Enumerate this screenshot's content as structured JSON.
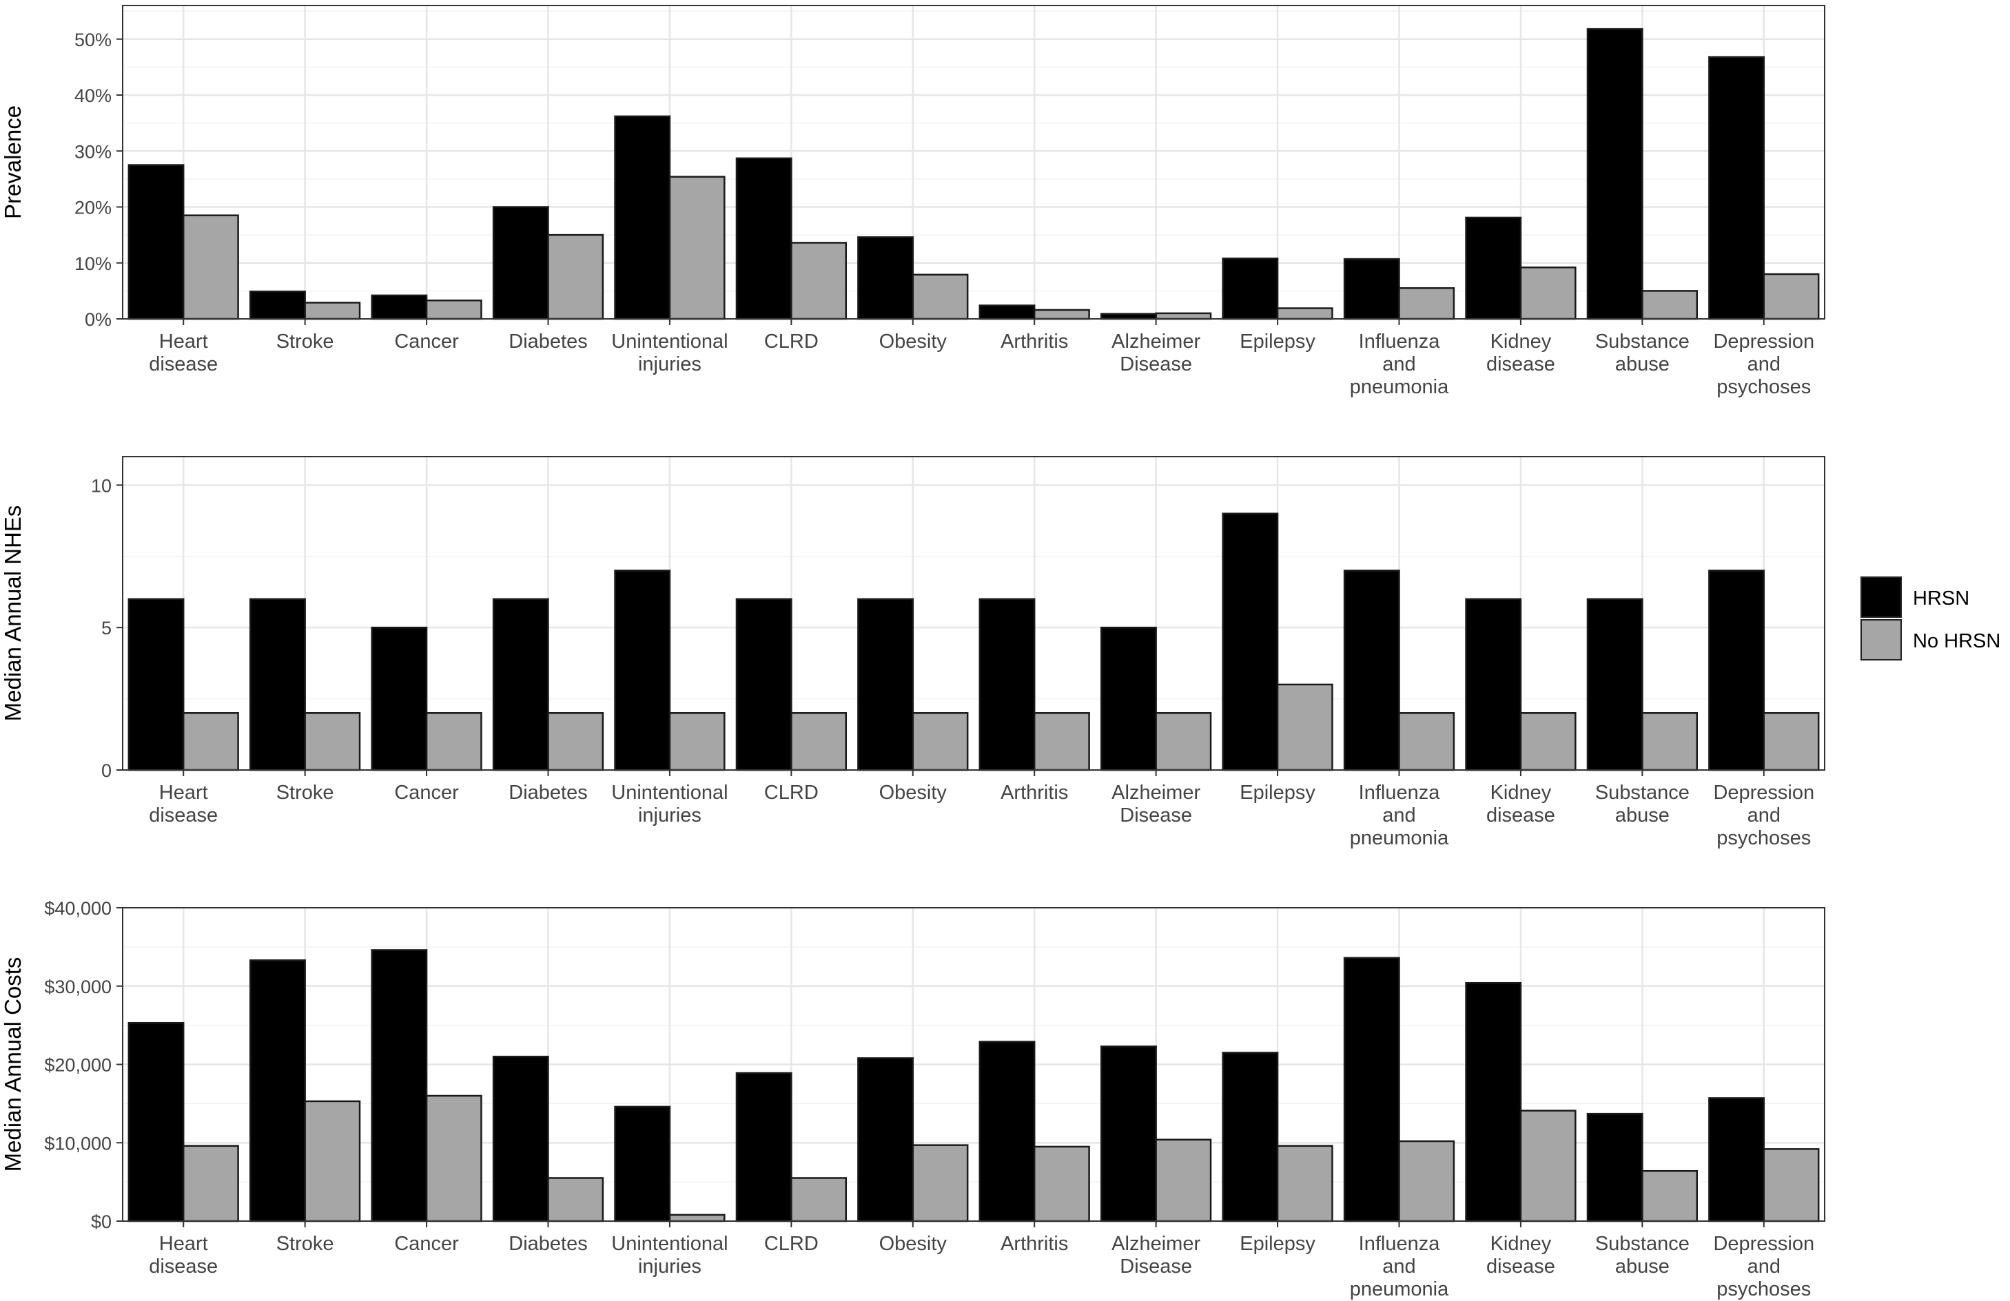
{
  "legend": {
    "entries": [
      {
        "label": "HRSN",
        "color": "#000000"
      },
      {
        "label": "No HRSN",
        "color": "#a6a6a6"
      }
    ],
    "placement": "right"
  },
  "chart_data": [
    {
      "type": "bar",
      "categories": [
        [
          "Heart",
          "disease"
        ],
        [
          "Stroke"
        ],
        [
          "Cancer"
        ],
        [
          "Diabetes"
        ],
        [
          "Unintentional",
          "injuries"
        ],
        [
          "CLRD"
        ],
        [
          "Obesity"
        ],
        [
          "Arthritis"
        ],
        [
          "Alzheimer",
          "Disease"
        ],
        [
          "Epilepsy"
        ],
        [
          "Influenza",
          "and",
          "pneumonia"
        ],
        [
          "Kidney",
          "disease"
        ],
        [
          "Substance",
          "abuse"
        ],
        [
          "Depression",
          "and",
          "psychoses"
        ]
      ],
      "series": [
        {
          "name": "HRSN",
          "values": [
            27.5,
            4.9,
            4.2,
            20.0,
            36.2,
            28.7,
            14.6,
            2.4,
            0.9,
            10.8,
            10.7,
            18.1,
            51.8,
            46.8
          ]
        },
        {
          "name": "No HRSN",
          "values": [
            18.5,
            2.9,
            3.3,
            15.0,
            25.4,
            13.6,
            7.9,
            1.6,
            1.0,
            1.9,
            5.5,
            9.2,
            5.0,
            8.0
          ]
        }
      ],
      "xlabel": "",
      "ylabel": "Prevalence",
      "ylim": [
        0,
        56
      ],
      "yticks": [
        0,
        10,
        20,
        30,
        40,
        50
      ],
      "ytick_labels": [
        "0%",
        "10%",
        "20%",
        "30%",
        "40%",
        "50%"
      ],
      "grid": true
    },
    {
      "type": "bar",
      "categories": [
        [
          "Heart",
          "disease"
        ],
        [
          "Stroke"
        ],
        [
          "Cancer"
        ],
        [
          "Diabetes"
        ],
        [
          "Unintentional",
          "injuries"
        ],
        [
          "CLRD"
        ],
        [
          "Obesity"
        ],
        [
          "Arthritis"
        ],
        [
          "Alzheimer",
          "Disease"
        ],
        [
          "Epilepsy"
        ],
        [
          "Influenza",
          "and",
          "pneumonia"
        ],
        [
          "Kidney",
          "disease"
        ],
        [
          "Substance",
          "abuse"
        ],
        [
          "Depression",
          "and",
          "psychoses"
        ]
      ],
      "series": [
        {
          "name": "HRSN",
          "values": [
            6,
            6,
            5,
            6,
            7,
            6,
            6,
            6,
            5,
            9,
            7,
            6,
            6,
            7
          ]
        },
        {
          "name": "No HRSN",
          "values": [
            2,
            2,
            2,
            2,
            2,
            2,
            2,
            2,
            2,
            3,
            2,
            2,
            2,
            2
          ]
        }
      ],
      "xlabel": "",
      "ylabel": "Median Annual NHEs",
      "ylim": [
        0,
        11
      ],
      "yticks": [
        0,
        5,
        10
      ],
      "ytick_labels": [
        "0",
        "5",
        "10"
      ],
      "grid": true
    },
    {
      "type": "bar",
      "categories": [
        [
          "Heart",
          "disease"
        ],
        [
          "Stroke"
        ],
        [
          "Cancer"
        ],
        [
          "Diabetes"
        ],
        [
          "Unintentional",
          "injuries"
        ],
        [
          "CLRD"
        ],
        [
          "Obesity"
        ],
        [
          "Arthritis"
        ],
        [
          "Alzheimer",
          "Disease"
        ],
        [
          "Epilepsy"
        ],
        [
          "Influenza",
          "and",
          "pneumonia"
        ],
        [
          "Kidney",
          "disease"
        ],
        [
          "Substance",
          "abuse"
        ],
        [
          "Depression",
          "and",
          "psychoses"
        ]
      ],
      "series": [
        {
          "name": "HRSN",
          "values": [
            25300,
            33300,
            34600,
            21000,
            14600,
            18900,
            20800,
            22900,
            22300,
            21500,
            33600,
            30400,
            13700,
            15700
          ]
        },
        {
          "name": "No HRSN",
          "values": [
            9600,
            15300,
            16000,
            5500,
            800,
            5500,
            9700,
            9500,
            10400,
            9600,
            10200,
            14100,
            6400,
            9200
          ]
        }
      ],
      "xlabel": "",
      "ylabel": "Median Annual Costs",
      "ylim": [
        0,
        40000
      ],
      "yticks": [
        0,
        10000,
        20000,
        30000,
        40000
      ],
      "ytick_labels": [
        "$0",
        "$10,000",
        "$20,000",
        "$30,000",
        "$40,000"
      ],
      "grid": true
    }
  ]
}
